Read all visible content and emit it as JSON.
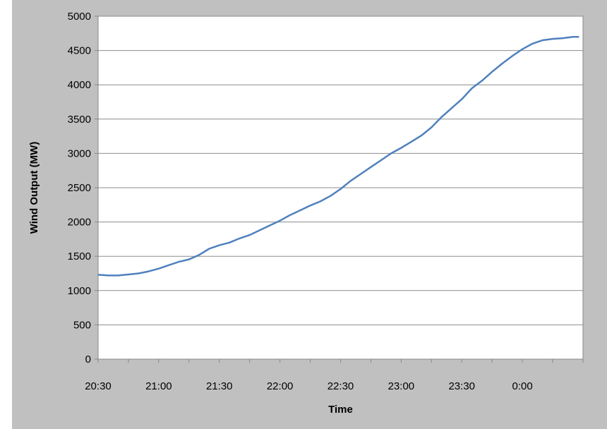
{
  "chart_data": {
    "type": "line",
    "title": "",
    "xlabel": "Time",
    "ylabel": "Wind Output (MW)",
    "ylim": [
      0,
      5000
    ],
    "y_ticks": [
      0,
      500,
      1000,
      1500,
      2000,
      2500,
      3000,
      3500,
      4000,
      4500,
      5000
    ],
    "x_tick_labels": [
      "20:30",
      "21:00",
      "21:30",
      "22:00",
      "22:30",
      "23:00",
      "23:30",
      "0:00"
    ],
    "x_range": [
      "20:30",
      "00:30"
    ],
    "grid": "horizontal",
    "legend": "none",
    "series": [
      {
        "color": "#4f81bd",
        "points": [
          [
            "20:30",
            1230
          ],
          [
            "20:35",
            1220
          ],
          [
            "20:40",
            1220
          ],
          [
            "20:45",
            1235
          ],
          [
            "20:50",
            1250
          ],
          [
            "20:55",
            1280
          ],
          [
            "21:00",
            1320
          ],
          [
            "21:05",
            1370
          ],
          [
            "21:10",
            1420
          ],
          [
            "21:15",
            1455
          ],
          [
            "21:20",
            1520
          ],
          [
            "21:25",
            1610
          ],
          [
            "21:30",
            1660
          ],
          [
            "21:35",
            1700
          ],
          [
            "21:40",
            1760
          ],
          [
            "21:45",
            1810
          ],
          [
            "21:50",
            1880
          ],
          [
            "21:55",
            1950
          ],
          [
            "22:00",
            2020
          ],
          [
            "22:05",
            2100
          ],
          [
            "22:10",
            2170
          ],
          [
            "22:15",
            2240
          ],
          [
            "22:20",
            2300
          ],
          [
            "22:25",
            2380
          ],
          [
            "22:30",
            2480
          ],
          [
            "22:35",
            2600
          ],
          [
            "22:40",
            2700
          ],
          [
            "22:45",
            2800
          ],
          [
            "22:50",
            2900
          ],
          [
            "22:55",
            3000
          ],
          [
            "23:00",
            3080
          ],
          [
            "23:05",
            3170
          ],
          [
            "23:10",
            3260
          ],
          [
            "23:15",
            3380
          ],
          [
            "23:20",
            3530
          ],
          [
            "23:25",
            3660
          ],
          [
            "23:30",
            3790
          ],
          [
            "23:35",
            3950
          ],
          [
            "23:40",
            4060
          ],
          [
            "23:45",
            4190
          ],
          [
            "23:50",
            4310
          ],
          [
            "23:55",
            4420
          ],
          [
            "0:00",
            4520
          ],
          [
            "0:05",
            4600
          ],
          [
            "0:10",
            4650
          ],
          [
            "0:15",
            4670
          ],
          [
            "0:20",
            4680
          ],
          [
            "0:25",
            4700
          ],
          [
            "0:28",
            4700
          ]
        ]
      }
    ]
  }
}
